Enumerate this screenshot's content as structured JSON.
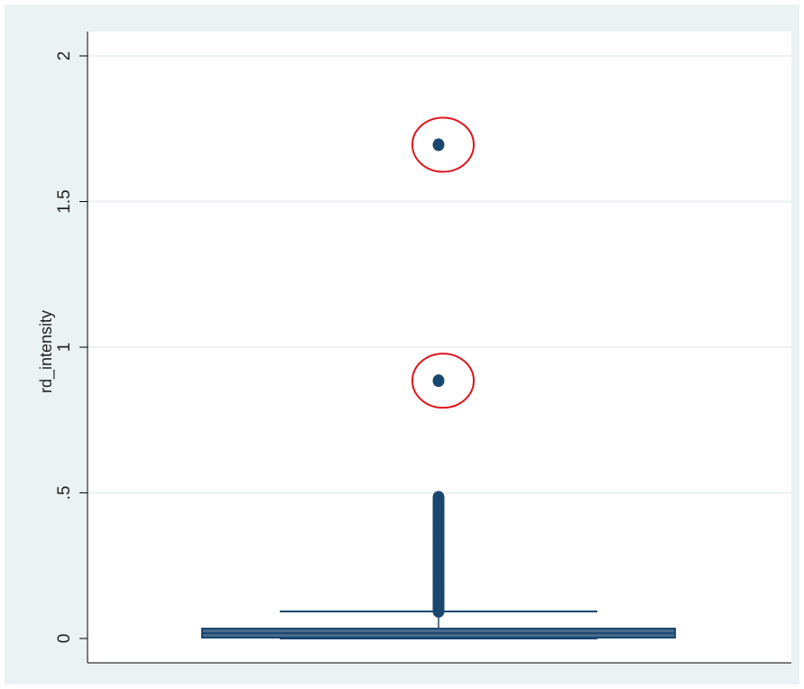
{
  "chart_data": {
    "type": "box",
    "ylabel": "rd_intensity",
    "xlabel": "",
    "title": "",
    "ylim": [
      0,
      2.1
    ],
    "yticks": [
      0,
      0.5,
      1,
      1.5,
      2
    ],
    "ytick_labels": [
      "0",
      ".5",
      "1",
      "1.5",
      "2"
    ],
    "grid": true,
    "box": {
      "q1": 0.003,
      "median": 0.018,
      "q3": 0.034,
      "whisker_low": 0,
      "whisker_high": 0.093
    },
    "outliers_dense_range": [
      0.093,
      0.485
    ],
    "outliers_isolated": [
      0.885,
      1.695
    ],
    "highlighted_outliers": [
      0.885,
      1.695
    ],
    "colors": {
      "outer_background": "#eaf2f3",
      "plot_background": "#ffffff",
      "box_fill": "#4a6b8d",
      "box_edge": "#1a476f",
      "marker": "#1a476f",
      "highlight_circle": "#e0141e",
      "grid": "#eaf2f3"
    }
  }
}
